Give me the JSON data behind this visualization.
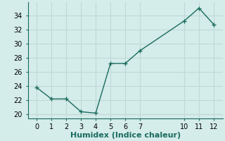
{
  "x": [
    0,
    1,
    2,
    3,
    4,
    5,
    6,
    7,
    10,
    11,
    12
  ],
  "y": [
    23.8,
    22.2,
    22.2,
    20.4,
    20.2,
    27.2,
    27.2,
    29.0,
    33.2,
    35.0,
    32.7
  ],
  "line_color": "#1a6b5e",
  "marker": "+",
  "marker_size": 4,
  "marker_linewidth": 1.0,
  "line_style": "-",
  "line_width": 1.0,
  "xlabel": "Humidex (Indice chaleur)",
  "xlabel_fontsize": 8,
  "xlabel_bold": true,
  "xlabel_color": "#1a6b5e",
  "ylim": [
    19.5,
    35.8
  ],
  "yticks": [
    20,
    22,
    24,
    26,
    28,
    30,
    32,
    34
  ],
  "xticks": [
    0,
    1,
    2,
    3,
    4,
    5,
    6,
    7,
    10,
    11,
    12
  ],
  "tick_fontsize": 7,
  "background_color": "#d4ecea",
  "grid_color": "#c0d8d6",
  "title": ""
}
